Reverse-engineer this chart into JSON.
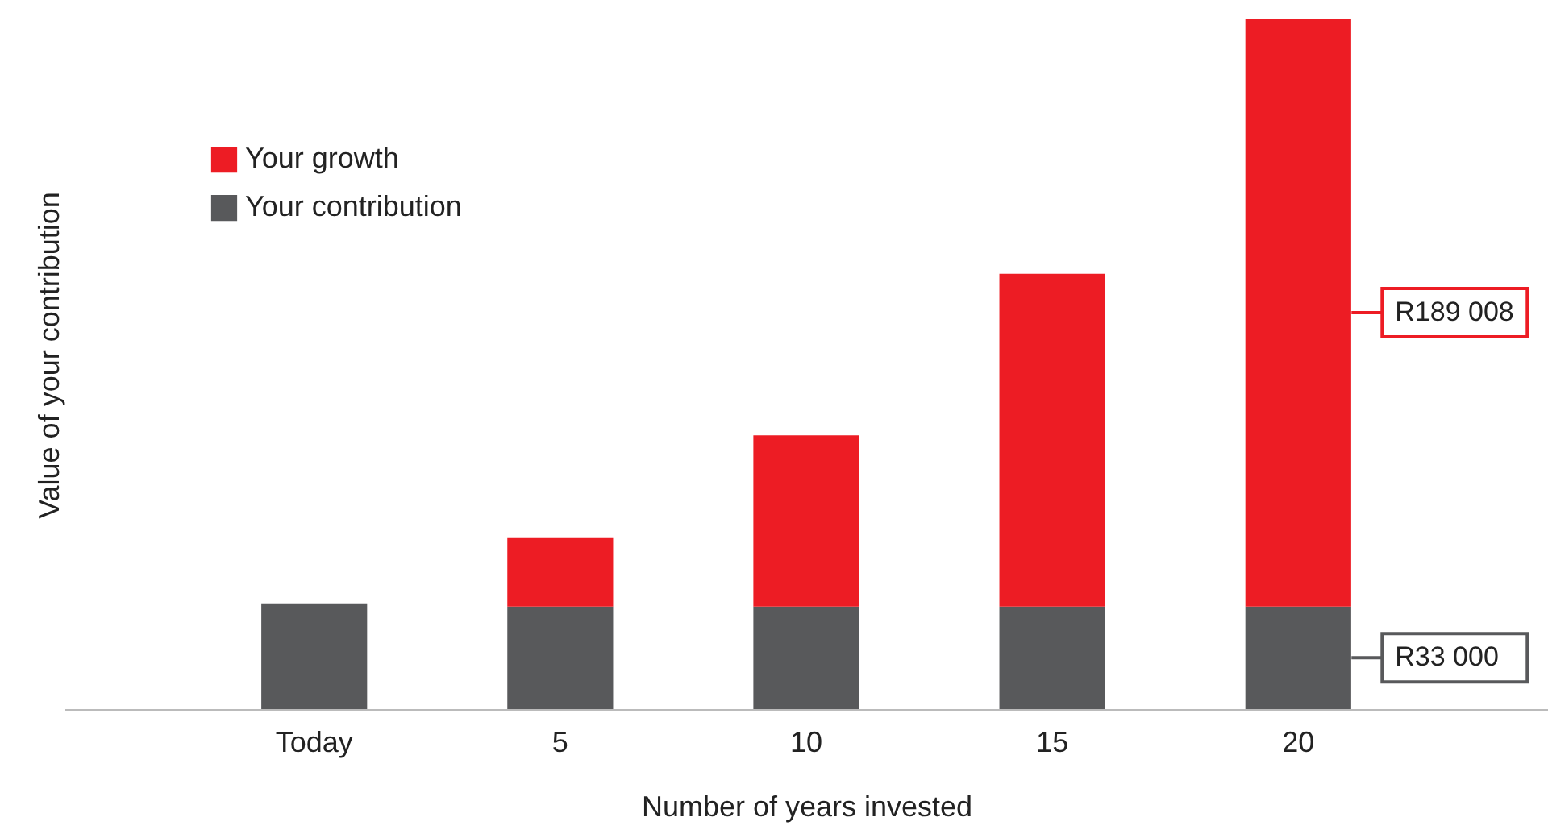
{
  "chart_data": {
    "type": "bar",
    "stacked": true,
    "xlabel": "Number of years invested",
    "ylabel": "Value of your contribution",
    "categories": [
      "Today",
      "5",
      "10",
      "15",
      "20"
    ],
    "ylim": [
      0,
      228000
    ],
    "legend": "top left",
    "series": [
      {
        "name": "Your contribution",
        "color": "#58595b",
        "values": [
          34000,
          33000,
          33000,
          33000,
          33000
        ],
        "value_labels": [
          null,
          null,
          null,
          null,
          "R33 000"
        ]
      },
      {
        "name": "Your growth",
        "color": "#ed1c24",
        "values": [
          null,
          22000,
          55000,
          107000,
          189008
        ],
        "value_labels": [
          null,
          null,
          null,
          null,
          "R189 008"
        ]
      }
    ]
  }
}
